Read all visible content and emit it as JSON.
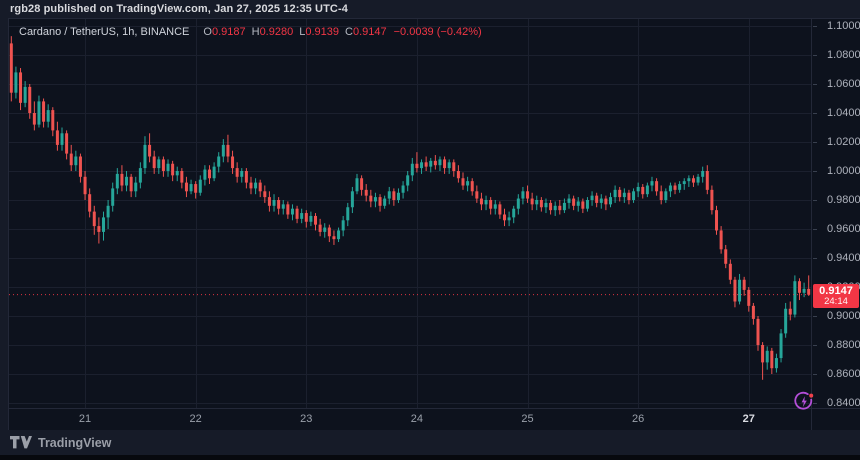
{
  "attribution": "rgb28 published on TradingView.com, Jan 27, 2025 12:35 UTC-4",
  "symbol_header": {
    "title": "Cardano / TetherUS, 1h, BINANCE",
    "o_label": "O",
    "o_value": "0.9187",
    "h_label": "H",
    "h_value": "0.9280",
    "l_label": "L",
    "l_value": "0.9139",
    "c_label": "C",
    "c_value": "0.9147",
    "change": "−0.0039 (−0.42%)"
  },
  "price_flag": {
    "price": "0.9147",
    "countdown": "24:14"
  },
  "footer": {
    "brand": "TradingView"
  },
  "icons": {
    "flash": "flash-streak-icon",
    "logo": "tradingview-logo"
  },
  "colors": {
    "up": "#26a69a",
    "down": "#ef5350",
    "flag_red": "#f23645",
    "grid": "#1b202e",
    "axis_text": "#aeb2bc",
    "chart_bg": "#0d121d",
    "outer_bg": "#161b28",
    "purple": "#b44fd8",
    "dot_red": "#f0414b"
  },
  "price_axis": {
    "ticks": [
      "1.1000",
      "1.0800",
      "1.0600",
      "1.0400",
      "1.0200",
      "1.0000",
      "0.9800",
      "0.9600",
      "0.9400",
      "0.9200",
      "0.9000",
      "0.8800",
      "0.8600",
      "0.8400"
    ]
  },
  "time_axis": {
    "ticks": [
      {
        "label": "21",
        "i": 16
      },
      {
        "label": "22",
        "i": 40
      },
      {
        "label": "23",
        "i": 64
      },
      {
        "label": "24",
        "i": 88
      },
      {
        "label": "25",
        "i": 112
      },
      {
        "label": "26",
        "i": 136
      },
      {
        "label": "27",
        "i": 160,
        "bold": true
      }
    ]
  },
  "chart_data": {
    "type": "candlestick",
    "title": "Cardano / TetherUS",
    "exchange": "BINANCE",
    "interval": "1h",
    "y_range": [
      0.84,
      1.1
    ],
    "grid": true,
    "current_price_line": 0.9147,
    "last_bar": {
      "open": 0.9187,
      "high": 0.928,
      "low": 0.9139,
      "close": 0.9147,
      "change": -0.0039,
      "change_pct": -0.42
    },
    "x_day_labels": [
      "21",
      "22",
      "23",
      "24",
      "25",
      "26",
      "27"
    ],
    "candles": [
      [
        1.088,
        1.093,
        1.048,
        1.054
      ],
      [
        1.054,
        1.072,
        1.05,
        1.068
      ],
      [
        1.068,
        1.071,
        1.042,
        1.047
      ],
      [
        1.047,
        1.062,
        1.044,
        1.058
      ],
      [
        1.058,
        1.06,
        1.036,
        1.04
      ],
      [
        1.04,
        1.048,
        1.028,
        1.032
      ],
      [
        1.032,
        1.052,
        1.03,
        1.048
      ],
      [
        1.048,
        1.05,
        1.03,
        1.034
      ],
      [
        1.034,
        1.046,
        1.03,
        1.042
      ],
      [
        1.042,
        1.044,
        1.024,
        1.028
      ],
      [
        1.028,
        1.034,
        1.014,
        1.018
      ],
      [
        1.018,
        1.03,
        1.014,
        1.026
      ],
      [
        1.026,
        1.028,
        1.008,
        1.012
      ],
      [
        1.012,
        1.018,
        1.0,
        1.004
      ],
      [
        1.004,
        1.014,
        1.0,
        1.01
      ],
      [
        1.01,
        1.012,
        0.992,
        0.996
      ],
      [
        0.996,
        1.0,
        0.98,
        0.984
      ],
      [
        0.984,
        0.988,
        0.968,
        0.972
      ],
      [
        0.972,
        0.976,
        0.956,
        0.962
      ],
      [
        0.962,
        0.968,
        0.95,
        0.958
      ],
      [
        0.958,
        0.972,
        0.952,
        0.968
      ],
      [
        0.968,
        0.98,
        0.96,
        0.976
      ],
      [
        0.976,
        0.992,
        0.972,
        0.988
      ],
      [
        0.988,
        1.002,
        0.984,
        0.998
      ],
      [
        0.998,
        1.004,
        0.986,
        0.99
      ],
      [
        0.99,
        1.0,
        0.986,
        0.996
      ],
      [
        0.996,
        0.998,
        0.982,
        0.986
      ],
      [
        0.986,
        0.996,
        0.982,
        0.992
      ],
      [
        0.992,
        1.006,
        0.988,
        1.002
      ],
      [
        1.002,
        1.024,
        0.998,
        1.018
      ],
      [
        1.018,
        1.026,
        1.006,
        1.01
      ],
      [
        1.01,
        1.014,
        0.998,
        1.002
      ],
      [
        1.002,
        1.01,
        0.998,
        1.008
      ],
      [
        1.008,
        1.01,
        0.996,
        1.0
      ],
      [
        1.0,
        1.008,
        0.996,
        1.005
      ],
      [
        1.005,
        1.007,
        0.993,
        0.997
      ],
      [
        0.997,
        1.003,
        0.993,
        1.0
      ],
      [
        1.0,
        1.002,
        0.988,
        0.992
      ],
      [
        0.992,
        0.996,
        0.982,
        0.986
      ],
      [
        0.986,
        0.994,
        0.984,
        0.991
      ],
      [
        0.991,
        0.993,
        0.981,
        0.985
      ],
      [
        0.985,
        0.997,
        0.983,
        0.994
      ],
      [
        0.994,
        1.004,
        0.99,
        1.001
      ],
      [
        1.001,
        1.004,
        0.991,
        0.995
      ],
      [
        0.995,
        1.006,
        0.993,
        1.003
      ],
      [
        1.003,
        1.013,
        0.999,
        1.01
      ],
      [
        1.01,
        1.022,
        1.006,
        1.018
      ],
      [
        1.018,
        1.025,
        1.006,
        1.01
      ],
      [
        1.01,
        1.014,
        0.998,
        1.002
      ],
      [
        1.002,
        1.006,
        0.992,
        0.996
      ],
      [
        0.996,
        1.002,
        0.992,
        1.0
      ],
      [
        1.0,
        1.002,
        0.988,
        0.992
      ],
      [
        0.992,
        0.996,
        0.984,
        0.988
      ],
      [
        0.988,
        0.995,
        0.984,
        0.992
      ],
      [
        0.992,
        0.994,
        0.982,
        0.986
      ],
      [
        0.986,
        0.99,
        0.978,
        0.982
      ],
      [
        0.982,
        0.986,
        0.972,
        0.976
      ],
      [
        0.976,
        0.984,
        0.972,
        0.98
      ],
      [
        0.98,
        0.982,
        0.97,
        0.974
      ],
      [
        0.974,
        0.98,
        0.97,
        0.977
      ],
      [
        0.977,
        0.979,
        0.967,
        0.97
      ],
      [
        0.97,
        0.977,
        0.966,
        0.974
      ],
      [
        0.974,
        0.976,
        0.964,
        0.967
      ],
      [
        0.967,
        0.974,
        0.964,
        0.971
      ],
      [
        0.971,
        0.973,
        0.961,
        0.965
      ],
      [
        0.965,
        0.972,
        0.962,
        0.969
      ],
      [
        0.969,
        0.971,
        0.959,
        0.963
      ],
      [
        0.963,
        0.967,
        0.955,
        0.958
      ],
      [
        0.958,
        0.964,
        0.954,
        0.961
      ],
      [
        0.961,
        0.963,
        0.951,
        0.955
      ],
      [
        0.955,
        0.959,
        0.949,
        0.953
      ],
      [
        0.953,
        0.961,
        0.951,
        0.959
      ],
      [
        0.959,
        0.969,
        0.955,
        0.966
      ],
      [
        0.966,
        0.978,
        0.962,
        0.975
      ],
      [
        0.975,
        0.989,
        0.971,
        0.986
      ],
      [
        0.986,
        0.998,
        0.984,
        0.995
      ],
      [
        0.995,
        0.997,
        0.983,
        0.987
      ],
      [
        0.987,
        0.991,
        0.979,
        0.983
      ],
      [
        0.983,
        0.987,
        0.975,
        0.979
      ],
      [
        0.979,
        0.985,
        0.975,
        0.982
      ],
      [
        0.982,
        0.984,
        0.972,
        0.976
      ],
      [
        0.976,
        0.983,
        0.974,
        0.981
      ],
      [
        0.981,
        0.989,
        0.977,
        0.986
      ],
      [
        0.986,
        0.988,
        0.976,
        0.98
      ],
      [
        0.98,
        0.988,
        0.978,
        0.985
      ],
      [
        0.985,
        0.993,
        0.981,
        0.99
      ],
      [
        0.99,
        1.0,
        0.986,
        0.997
      ],
      [
        0.997,
        1.009,
        0.993,
        1.005
      ],
      [
        1.005,
        1.013,
        0.999,
        1.002
      ],
      [
        1.002,
        1.008,
        0.998,
        1.006
      ],
      [
        1.006,
        1.01,
        1.0,
        1.003
      ],
      [
        1.003,
        1.009,
        0.999,
        1.007
      ],
      [
        1.007,
        1.011,
        1.001,
        1.004
      ],
      [
        1.004,
        1.01,
        1.0,
        1.008
      ],
      [
        1.008,
        1.01,
        0.998,
        1.002
      ],
      [
        1.002,
        1.008,
        0.998,
        1.006
      ],
      [
        1.006,
        1.008,
        0.996,
        1.0
      ],
      [
        1.0,
        1.004,
        0.992,
        0.995
      ],
      [
        0.995,
        0.999,
        0.987,
        0.99
      ],
      [
        0.99,
        0.996,
        0.986,
        0.993
      ],
      [
        0.993,
        0.995,
        0.983,
        0.986
      ],
      [
        0.986,
        0.99,
        0.978,
        0.981
      ],
      [
        0.981,
        0.985,
        0.973,
        0.977
      ],
      [
        0.977,
        0.983,
        0.973,
        0.98
      ],
      [
        0.98,
        0.982,
        0.97,
        0.974
      ],
      [
        0.974,
        0.98,
        0.97,
        0.977
      ],
      [
        0.977,
        0.979,
        0.967,
        0.97
      ],
      [
        0.97,
        0.974,
        0.962,
        0.966
      ],
      [
        0.966,
        0.972,
        0.962,
        0.968
      ],
      [
        0.968,
        0.976,
        0.964,
        0.974
      ],
      [
        0.974,
        0.984,
        0.97,
        0.981
      ],
      [
        0.981,
        0.989,
        0.977,
        0.986
      ],
      [
        0.986,
        0.99,
        0.978,
        0.981
      ],
      [
        0.981,
        0.985,
        0.973,
        0.977
      ],
      [
        0.977,
        0.983,
        0.973,
        0.98
      ],
      [
        0.98,
        0.982,
        0.972,
        0.975
      ],
      [
        0.975,
        0.981,
        0.971,
        0.978
      ],
      [
        0.978,
        0.98,
        0.97,
        0.973
      ],
      [
        0.973,
        0.979,
        0.969,
        0.976
      ],
      [
        0.976,
        0.98,
        0.97,
        0.973
      ],
      [
        0.973,
        0.981,
        0.971,
        0.978
      ],
      [
        0.978,
        0.984,
        0.974,
        0.981
      ],
      [
        0.981,
        0.983,
        0.973,
        0.976
      ],
      [
        0.976,
        0.982,
        0.972,
        0.979
      ],
      [
        0.979,
        0.981,
        0.971,
        0.974
      ],
      [
        0.974,
        0.982,
        0.972,
        0.98
      ],
      [
        0.98,
        0.986,
        0.976,
        0.983
      ],
      [
        0.983,
        0.985,
        0.975,
        0.978
      ],
      [
        0.978,
        0.984,
        0.974,
        0.981
      ],
      [
        0.981,
        0.983,
        0.973,
        0.977
      ],
      [
        0.977,
        0.985,
        0.975,
        0.982
      ],
      [
        0.982,
        0.99,
        0.978,
        0.987
      ],
      [
        0.987,
        0.989,
        0.979,
        0.982
      ],
      [
        0.982,
        0.988,
        0.978,
        0.985
      ],
      [
        0.985,
        0.987,
        0.977,
        0.98
      ],
      [
        0.98,
        0.988,
        0.978,
        0.986
      ],
      [
        0.986,
        0.992,
        0.982,
        0.989
      ],
      [
        0.989,
        0.991,
        0.981,
        0.984
      ],
      [
        0.984,
        0.992,
        0.982,
        0.99
      ],
      [
        0.99,
        0.996,
        0.986,
        0.993
      ],
      [
        0.993,
        0.995,
        0.983,
        0.986
      ],
      [
        0.986,
        0.99,
        0.977,
        0.98
      ],
      [
        0.98,
        0.988,
        0.978,
        0.986
      ],
      [
        0.986,
        0.992,
        0.982,
        0.99
      ],
      [
        0.99,
        0.992,
        0.984,
        0.987
      ],
      [
        0.987,
        0.993,
        0.985,
        0.991
      ],
      [
        0.991,
        0.995,
        0.987,
        0.993
      ],
      [
        0.993,
        0.997,
        0.989,
        0.995
      ],
      [
        0.995,
        0.997,
        0.989,
        0.992
      ],
      [
        0.992,
        0.998,
        0.99,
        0.996
      ],
      [
        0.996,
        1.003,
        0.992,
        1.0
      ],
      [
        1.0,
        1.004,
        0.984,
        0.987
      ],
      [
        0.987,
        0.99,
        0.97,
        0.973
      ],
      [
        0.973,
        0.976,
        0.956,
        0.959
      ],
      [
        0.959,
        0.962,
        0.943,
        0.946
      ],
      [
        0.946,
        0.949,
        0.933,
        0.936
      ],
      [
        0.936,
        0.939,
        0.922,
        0.925
      ],
      [
        0.925,
        0.927,
        0.906,
        0.91
      ],
      [
        0.91,
        0.929,
        0.908,
        0.925
      ],
      [
        0.925,
        0.927,
        0.914,
        0.918
      ],
      [
        0.918,
        0.92,
        0.903,
        0.907
      ],
      [
        0.907,
        0.909,
        0.894,
        0.898
      ],
      [
        0.898,
        0.9,
        0.876,
        0.88
      ],
      [
        0.88,
        0.882,
        0.856,
        0.868
      ],
      [
        0.868,
        0.879,
        0.863,
        0.876
      ],
      [
        0.876,
        0.878,
        0.86,
        0.864
      ],
      [
        0.864,
        0.874,
        0.861,
        0.871
      ],
      [
        0.871,
        0.891,
        0.868,
        0.888
      ],
      [
        0.888,
        0.909,
        0.885,
        0.905
      ],
      [
        0.905,
        0.91,
        0.897,
        0.901
      ],
      [
        0.901,
        0.928,
        0.899,
        0.924
      ],
      [
        0.924,
        0.926,
        0.911,
        0.916
      ],
      [
        0.916,
        0.923,
        0.913,
        0.9187
      ],
      [
        0.9187,
        0.928,
        0.9139,
        0.9147
      ]
    ]
  }
}
